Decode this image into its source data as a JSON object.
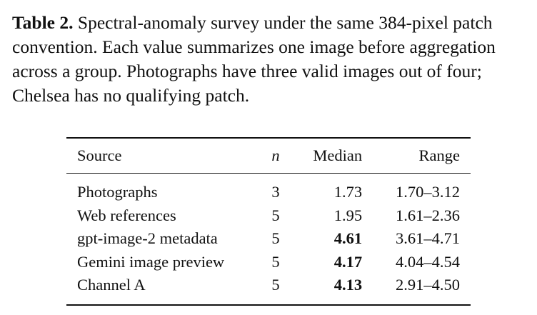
{
  "caption": {
    "label": "Table 2.",
    "text": "Spectral-anomaly survey under the same 384-pixel patch convention. Each value summarizes one image before aggregation across a group. Photographs have three valid images out of four; Chelsea has no qualifying patch."
  },
  "table": {
    "header": [
      "Source",
      "n",
      "Median",
      "Range"
    ],
    "rows": [
      [
        "Photographs",
        "3",
        "1.73",
        "1.70–3.12"
      ],
      [
        "Web references",
        "5",
        "1.95",
        "1.61–2.36"
      ],
      [
        "gpt-image-2 metadata",
        "5",
        "4.61",
        "3.61–4.71"
      ],
      [
        "Gemini image preview",
        "5",
        "4.17",
        "4.04–4.54"
      ],
      [
        "Channel A",
        "5",
        "4.13",
        "2.91–4.50"
      ]
    ]
  }
}
